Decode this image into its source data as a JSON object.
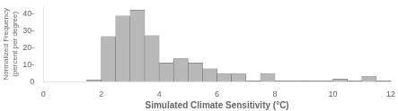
{
  "chart_data": {
    "type": "bar",
    "xlabel": "Simulated Climate Sensitivity (°C)",
    "ylabel": "Normalized Frequency\n(percent per degree)",
    "bins": [
      1.5,
      2.0,
      2.5,
      3.0,
      3.5,
      4.0,
      4.5,
      5.0,
      5.5,
      6.0,
      6.5,
      7.0,
      7.5,
      8.0,
      8.5,
      9.0,
      9.5,
      10.0,
      10.5,
      11.0,
      11.5,
      12.0
    ],
    "values": [
      1.0,
      26.5,
      38.5,
      42.0,
      27.0,
      11.0,
      13.5,
      11.0,
      7.5,
      4.5,
      4.5,
      0.5,
      4.5,
      0.5,
      0.5,
      0.5,
      0.5,
      1.5,
      0.5,
      3.0,
      0.5
    ],
    "color": "#b8b8b8",
    "xlim": [
      0,
      12
    ],
    "xticks": [
      0,
      2,
      4,
      6,
      8,
      10,
      12
    ],
    "ylim": [
      0,
      44
    ],
    "yticks": [
      0,
      {
        "value": 10,
        "label": "10-"
      },
      {
        "value": 20,
        "label": "20-"
      },
      {
        "value": 30,
        "label": "30-"
      },
      {
        "value": 40,
        "label": "40-"
      }
    ],
    "grid": false
  }
}
